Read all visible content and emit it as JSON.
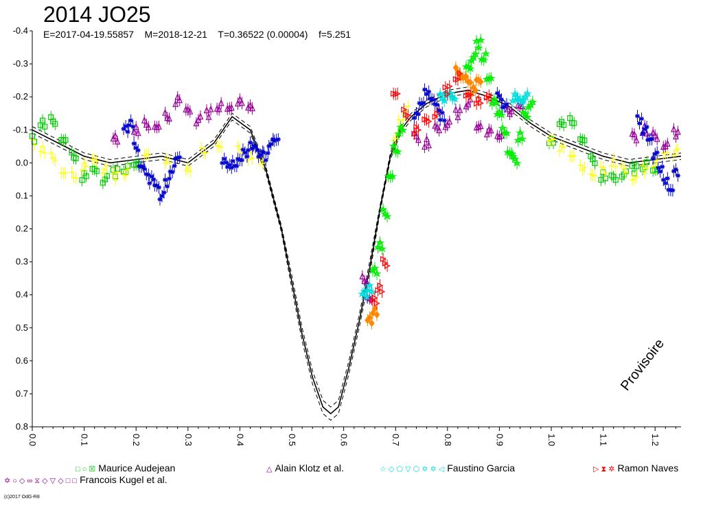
{
  "chart_data": {
    "type": "scatter",
    "title": "2014 JO25",
    "subtitle": "E=2017-04-19.55857    M=2018-12-21    T=0.36522 (0.00004)    f=5.251",
    "xlim": [
      0.0,
      1.25
    ],
    "ylim": [
      -0.4,
      0.8
    ],
    "y_inverted": true,
    "x_ticks": [
      "0.0",
      "0.1",
      "0.2",
      "0.3",
      "0.4",
      "0.5",
      "0.6",
      "0.7",
      "0.8",
      "0.9",
      "1.0",
      "1.1",
      "1.2"
    ],
    "y_ticks": [
      "-0.4",
      "-0.3",
      "-0.2",
      "-0.1",
      "0.0",
      "0.1",
      "0.2",
      "0.3",
      "0.4",
      "0.5",
      "0.6",
      "0.7",
      "0.8"
    ],
    "watermark": "Provisoire",
    "credit": "(c)2017 OdG-R8",
    "legend": [
      {
        "name": "Maurice Audejean",
        "symbols": "□ ○ ☒",
        "color": "#00cc00"
      },
      {
        "name": "Alain Klotz et al.",
        "symbols": "△",
        "color": "#990099"
      },
      {
        "name": "Faustino Garcia",
        "symbols": "☆ ◇ ⬠ ▽ ⬡ ✡ ✡ ◁",
        "color": "#00dddd"
      },
      {
        "name": "Ramon Naves",
        "symbols": "▷ ⧗ ✲",
        "color": "#ff0000"
      },
      {
        "name": "Francois Kugel et al.",
        "symbols": "✡ ○ ◇ ∞ ⧖ ◇ ▽ ◇ □ □",
        "color": "#990099"
      }
    ],
    "fit_curve": {
      "x": [
        0.0,
        0.05,
        0.1,
        0.15,
        0.2,
        0.25,
        0.3,
        0.35,
        0.385,
        0.42,
        0.45,
        0.48,
        0.5,
        0.52,
        0.54,
        0.56,
        0.575,
        0.59,
        0.61,
        0.63,
        0.65,
        0.67,
        0.69,
        0.71,
        0.73,
        0.76,
        0.8,
        0.84,
        0.88,
        0.92,
        0.96,
        1.0,
        1.05,
        1.1,
        1.15,
        1.2,
        1.25
      ],
      "y": [
        -0.1,
        -0.06,
        -0.02,
        0.0,
        -0.01,
        -0.02,
        0.0,
        -0.06,
        -0.14,
        -0.1,
        0.02,
        0.2,
        0.36,
        0.52,
        0.65,
        0.74,
        0.76,
        0.74,
        0.62,
        0.48,
        0.32,
        0.14,
        -0.02,
        -0.1,
        -0.14,
        -0.18,
        -0.21,
        -0.22,
        -0.2,
        -0.17,
        -0.12,
        -0.08,
        -0.05,
        -0.02,
        0.0,
        -0.01,
        -0.02
      ],
      "band": 0.02
    },
    "series": [
      {
        "name": "Maurice Audejean",
        "color": "#00cc00",
        "marker": "square",
        "x": [
          0.0,
          0.02,
          0.04,
          0.06,
          0.08,
          0.1,
          0.12,
          0.14,
          0.16,
          0.18,
          0.2,
          1.0,
          1.02,
          1.04,
          1.06,
          1.08,
          1.1,
          1.12,
          1.14,
          1.16,
          1.18,
          1.2
        ],
        "y": [
          -0.07,
          -0.12,
          -0.13,
          -0.08,
          -0.02,
          0.04,
          0.03,
          0.05,
          0.03,
          0.02,
          0.01,
          -0.06,
          -0.12,
          -0.13,
          -0.08,
          -0.01,
          0.04,
          0.05,
          0.03,
          0.02,
          0.01,
          0.03
        ]
      },
      {
        "name": "Maurice Audejean (yellow)",
        "color": "#ffff00",
        "marker": "cross",
        "x": [
          0.0,
          0.02,
          0.04,
          0.06,
          0.08,
          0.1,
          0.12,
          0.14,
          0.16,
          0.18,
          0.22,
          0.26,
          0.3,
          0.33,
          0.36,
          0.4,
          0.42,
          0.44,
          0.7,
          0.71,
          0.72,
          1.0,
          1.02,
          1.04,
          1.06,
          1.08,
          1.1,
          1.12,
          1.14,
          1.16,
          1.18,
          1.2,
          1.22,
          1.24
        ],
        "y": [
          -0.06,
          -0.04,
          -0.02,
          0.02,
          0.04,
          0.01,
          0.0,
          0.02,
          0.04,
          0.03,
          -0.02,
          0.0,
          0.02,
          -0.04,
          -0.06,
          -0.04,
          -0.02,
          0.0,
          -0.08,
          -0.12,
          -0.16,
          -0.06,
          -0.04,
          -0.02,
          0.01,
          0.03,
          0.02,
          0.0,
          0.02,
          0.04,
          0.02,
          0.0,
          -0.02,
          -0.03
        ]
      },
      {
        "name": "Alain Klotz et al.",
        "color": "#990099",
        "marker": "triangle",
        "x": [
          0.16,
          0.2,
          0.22,
          0.24,
          0.26,
          0.28,
          0.3,
          0.32,
          0.34,
          0.36,
          0.38,
          0.4,
          0.42,
          0.64,
          0.65,
          0.74,
          0.76,
          0.78,
          0.8,
          0.82,
          0.84,
          0.86,
          0.88,
          0.9,
          0.92,
          0.94,
          1.16,
          1.18,
          1.2,
          1.22,
          1.24
        ],
        "y": [
          -0.07,
          -0.1,
          -0.12,
          -0.12,
          -0.14,
          -0.19,
          -0.15,
          -0.13,
          -0.15,
          -0.17,
          -0.16,
          -0.18,
          -0.17,
          0.35,
          0.4,
          -0.08,
          -0.06,
          -0.1,
          -0.12,
          -0.15,
          -0.18,
          -0.1,
          -0.09,
          -0.08,
          -0.16,
          -0.18,
          -0.08,
          -0.1,
          -0.08,
          -0.06,
          -0.09
        ]
      },
      {
        "name": "Faustino Garcia",
        "color": "#00dddd",
        "marker": "star",
        "x": [
          0.64,
          0.65,
          0.79,
          0.8,
          0.81,
          0.93,
          0.94,
          0.95
        ],
        "y": [
          0.4,
          0.38,
          -0.2,
          -0.22,
          -0.2,
          -0.2,
          -0.18,
          -0.2
        ]
      },
      {
        "name": "Faustino Garcia (orange)",
        "color": "#ff8800",
        "marker": "diamond",
        "x": [
          0.65,
          0.66,
          0.82,
          0.83,
          0.84,
          0.85,
          0.86
        ],
        "y": [
          0.48,
          0.45,
          -0.28,
          -0.27,
          -0.25,
          -0.22,
          -0.24
        ]
      },
      {
        "name": "Ramon Naves",
        "color": "#ff0000",
        "marker": "triangle-right",
        "x": [
          0.66,
          0.67,
          0.68,
          0.7,
          0.72,
          0.74,
          0.76,
          0.78,
          0.8,
          0.82,
          0.84,
          0.86,
          0.88
        ],
        "y": [
          0.42,
          0.38,
          0.3,
          -0.22,
          -0.15,
          -0.1,
          -0.12,
          -0.15,
          -0.22,
          -0.26,
          -0.2,
          -0.18,
          -0.2
        ]
      },
      {
        "name": "Ramon Naves (blue)",
        "color": "#0000cc",
        "marker": "asterisk",
        "x": [
          0.18,
          0.19,
          0.2,
          0.21,
          0.22,
          0.23,
          0.24,
          0.25,
          0.26,
          0.27,
          0.28,
          0.37,
          0.38,
          0.39,
          0.4,
          0.41,
          0.42,
          0.43,
          0.44,
          0.45,
          0.46,
          0.47,
          0.74,
          0.75,
          0.76,
          0.77,
          0.78,
          0.79,
          0.9,
          0.91,
          1.17,
          1.18,
          1.19,
          1.2,
          1.21,
          1.22,
          1.23,
          1.24
        ],
        "y": [
          -0.1,
          -0.12,
          -0.05,
          0.0,
          0.03,
          0.05,
          0.08,
          0.1,
          0.06,
          0.02,
          -0.01,
          0.0,
          0.01,
          0.0,
          -0.02,
          -0.03,
          -0.05,
          -0.04,
          -0.03,
          -0.02,
          -0.06,
          -0.06,
          -0.14,
          -0.18,
          -0.22,
          -0.2,
          -0.17,
          -0.14,
          -0.2,
          -0.18,
          -0.13,
          -0.1,
          -0.06,
          -0.02,
          0.02,
          0.05,
          0.08,
          0.03
        ]
      },
      {
        "name": "Francois Kugel et al.",
        "color": "#00ee00",
        "marker": "star",
        "x": [
          0.66,
          0.67,
          0.68,
          0.69,
          0.7,
          0.71,
          0.84,
          0.85,
          0.86,
          0.87,
          0.88,
          0.89,
          0.9,
          0.91,
          0.92,
          0.93,
          0.94,
          0.95,
          0.96
        ],
        "y": [
          0.33,
          0.25,
          0.15,
          0.03,
          -0.04,
          -0.1,
          -0.28,
          -0.32,
          -0.36,
          -0.32,
          -0.25,
          -0.18,
          -0.15,
          -0.1,
          -0.04,
          -0.01,
          -0.08,
          -0.14,
          -0.18
        ]
      }
    ]
  }
}
